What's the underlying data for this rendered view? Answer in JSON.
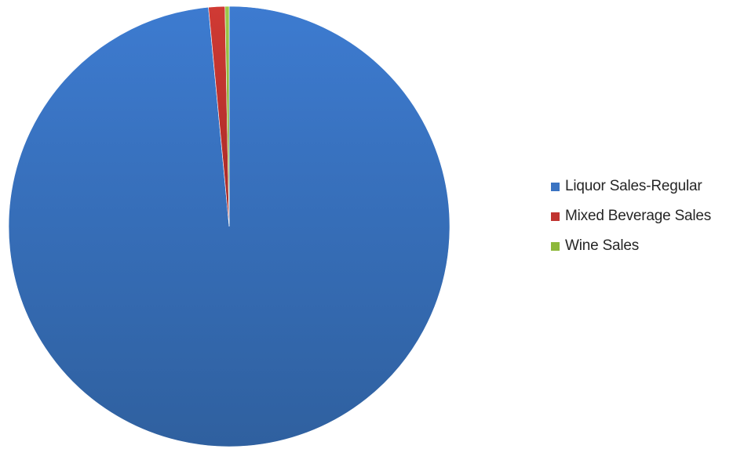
{
  "chart_data": {
    "type": "pie",
    "title": "",
    "start_angle_deg": 0,
    "direction": "clockwise",
    "legend_position": "right",
    "slices": [
      {
        "label": "Liquor Sales-Regular",
        "value": 98.5,
        "color": "#3A73C2"
      },
      {
        "label": "Mixed Beverage Sales",
        "value": 1.2,
        "color": "#C0332F"
      },
      {
        "label": "Wine Sales",
        "value": 0.3,
        "color": "#8DB83A"
      }
    ]
  }
}
